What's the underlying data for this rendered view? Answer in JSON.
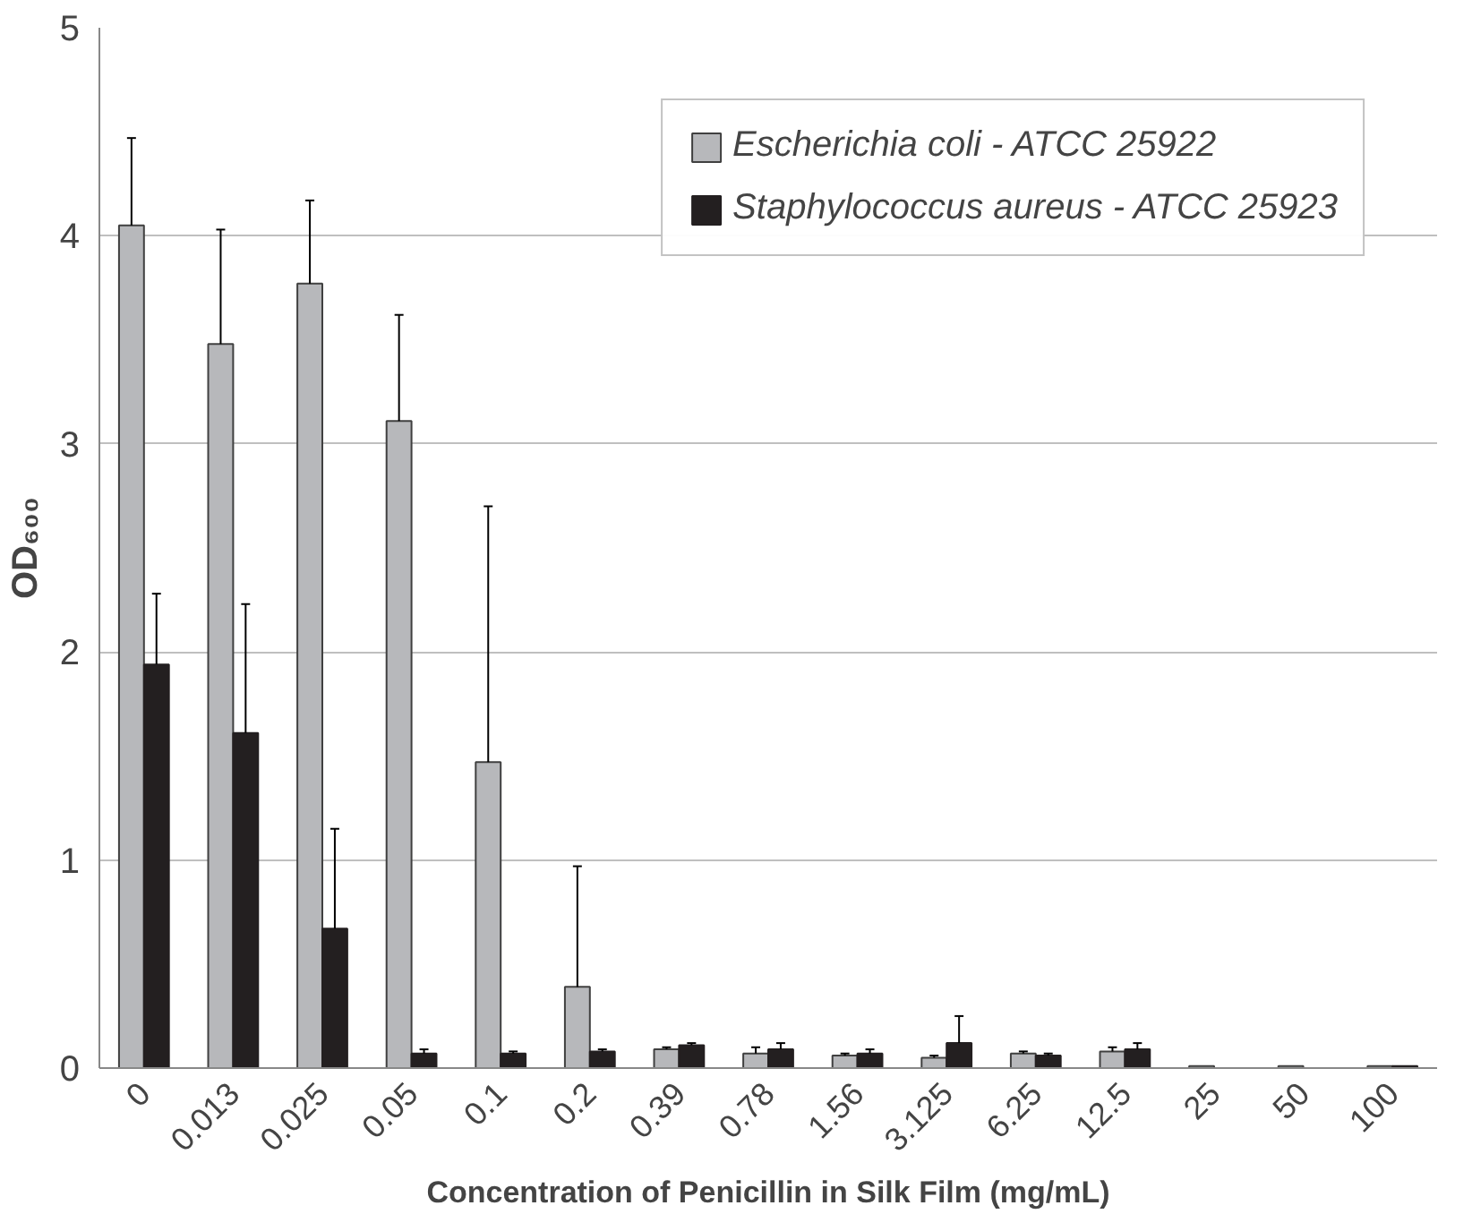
{
  "chart_data": {
    "type": "bar",
    "xlabel": "Concentration of Penicillin in Silk Film (mg/mL)",
    "ylabel": "OD₆₀₀",
    "categories": [
      "0",
      "0.013",
      "0.025",
      "0.05",
      "0.1",
      "0.2",
      "0.39",
      "0.78",
      "1.56",
      "3.125",
      "6.25",
      "12.5",
      "25",
      "50",
      "100"
    ],
    "series": [
      {
        "name": "Escherichia coli - ATCC 25922",
        "color": "#b7b8bb",
        "values": [
          4.05,
          3.48,
          3.77,
          3.11,
          1.47,
          0.39,
          0.09,
          0.07,
          0.06,
          0.05,
          0.07,
          0.08,
          0.01,
          0.01,
          0.01
        ],
        "errors": [
          [
            4.05,
            4.47
          ],
          [
            3.48,
            4.03
          ],
          [
            3.77,
            4.17
          ],
          [
            3.11,
            3.62
          ],
          [
            1.47,
            2.7
          ],
          [
            0.39,
            0.97
          ],
          [
            0.09,
            0.1
          ],
          [
            0.07,
            0.1
          ],
          [
            0.06,
            0.07
          ],
          [
            0.05,
            0.06
          ],
          [
            0.07,
            0.08
          ],
          [
            0.08,
            0.1
          ],
          null,
          null,
          null
        ]
      },
      {
        "name": "Staphylococcus aureus - ATCC 25923",
        "color": "#231f20",
        "values": [
          1.94,
          1.61,
          0.67,
          0.07,
          0.07,
          0.08,
          0.11,
          0.09,
          0.07,
          0.12,
          0.06,
          0.09,
          0.0,
          0.0,
          0.01
        ],
        "errors": [
          [
            1.94,
            2.28
          ],
          [
            1.61,
            2.23
          ],
          [
            0.67,
            1.15
          ],
          [
            0.07,
            0.09
          ],
          [
            0.07,
            0.08
          ],
          [
            0.08,
            0.09
          ],
          [
            0.11,
            0.12
          ],
          [
            0.09,
            0.12
          ],
          [
            0.07,
            0.09
          ],
          [
            0.12,
            0.25
          ],
          [
            0.06,
            0.07
          ],
          [
            0.09,
            0.12
          ],
          null,
          null,
          null
        ]
      }
    ],
    "ylim": [
      0,
      5
    ],
    "yticks": [
      0,
      1,
      2,
      3,
      4,
      5
    ],
    "grid": "y",
    "legend": "top right"
  }
}
